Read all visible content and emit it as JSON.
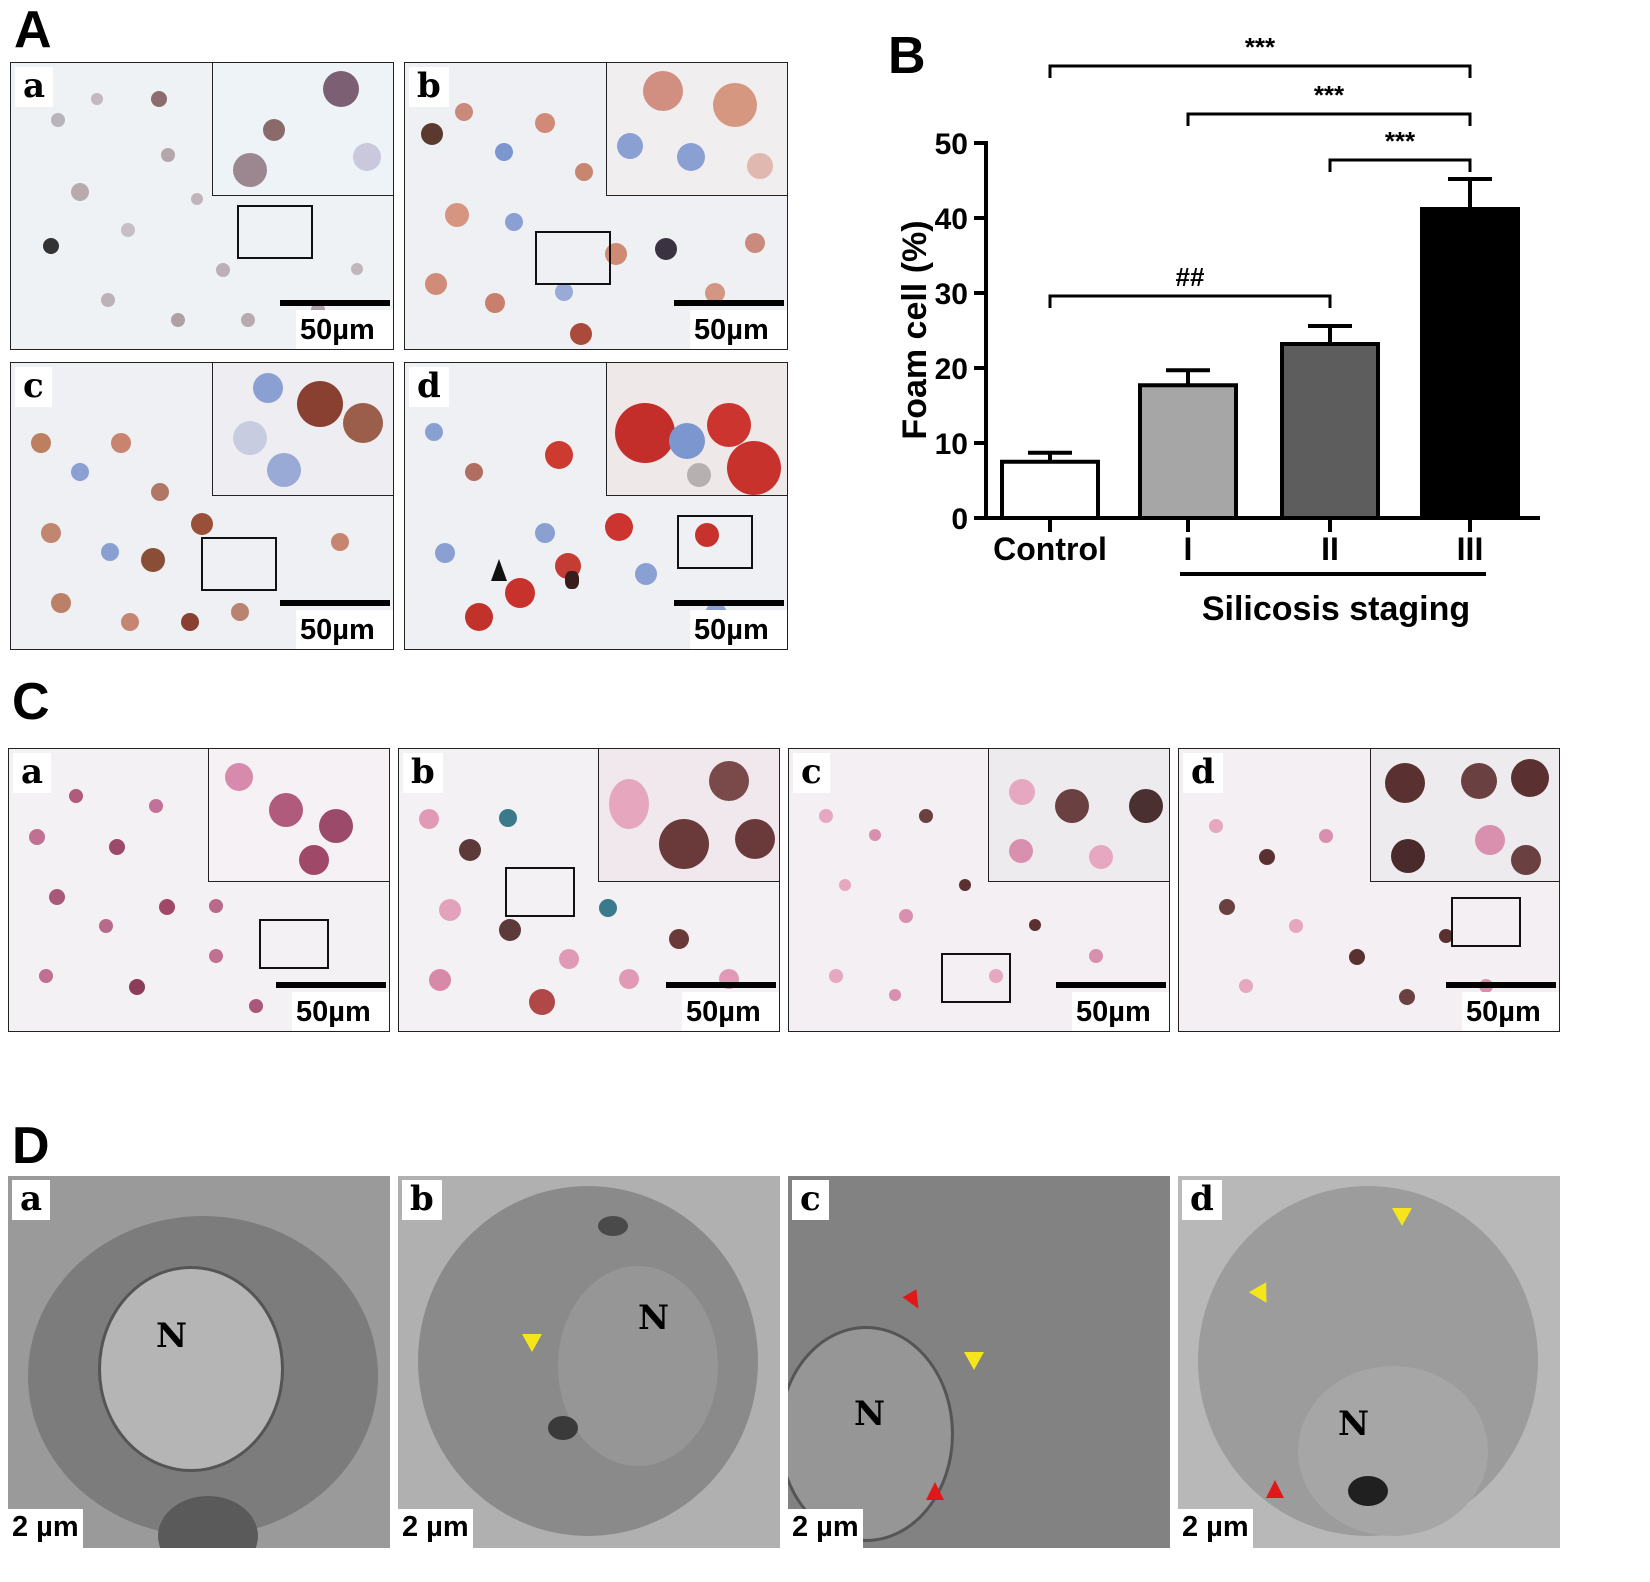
{
  "figure": {
    "panel_labels": {
      "A": "A",
      "B": "B",
      "C": "C",
      "D": "D"
    },
    "sublabels": [
      "a",
      "b",
      "c",
      "d"
    ],
    "scalebar_um": "50µm",
    "scalebar_tem": "2 µm",
    "nucleus_label": "N",
    "colors": {
      "oil_red": "#c8322c",
      "hematoxylin_blue": "#7c97cf",
      "pink_stain": "#e79fbd",
      "tem_gray": "#8a8a8a",
      "arrow_black": "#111111",
      "arrow_yellow": "#f5e51a",
      "arrow_red": "#e01818"
    }
  },
  "chart_data": {
    "type": "bar",
    "categories": [
      "Control",
      "I",
      "II",
      "III"
    ],
    "values": [
      7.5,
      17.7,
      23.2,
      41.2
    ],
    "errors": [
      1.2,
      2.0,
      2.4,
      4.0
    ],
    "bar_colors": [
      "#ffffff",
      "#a6a6a6",
      "#5d5d5d",
      "#000000"
    ],
    "ylabel": "Foam cell (%)",
    "xlabel": "Silicosis staging",
    "ylim": [
      0,
      50
    ],
    "yticks": [
      "0",
      "10",
      "20",
      "30",
      "40",
      "50"
    ],
    "annotations": [
      {
        "from": "Control",
        "to": "III",
        "label": "***"
      },
      {
        "from": "I",
        "to": "III",
        "label": "***"
      },
      {
        "from": "II",
        "to": "III",
        "label": "***"
      },
      {
        "from": "Control",
        "to": "II",
        "label": "##"
      }
    ],
    "grid": false
  }
}
